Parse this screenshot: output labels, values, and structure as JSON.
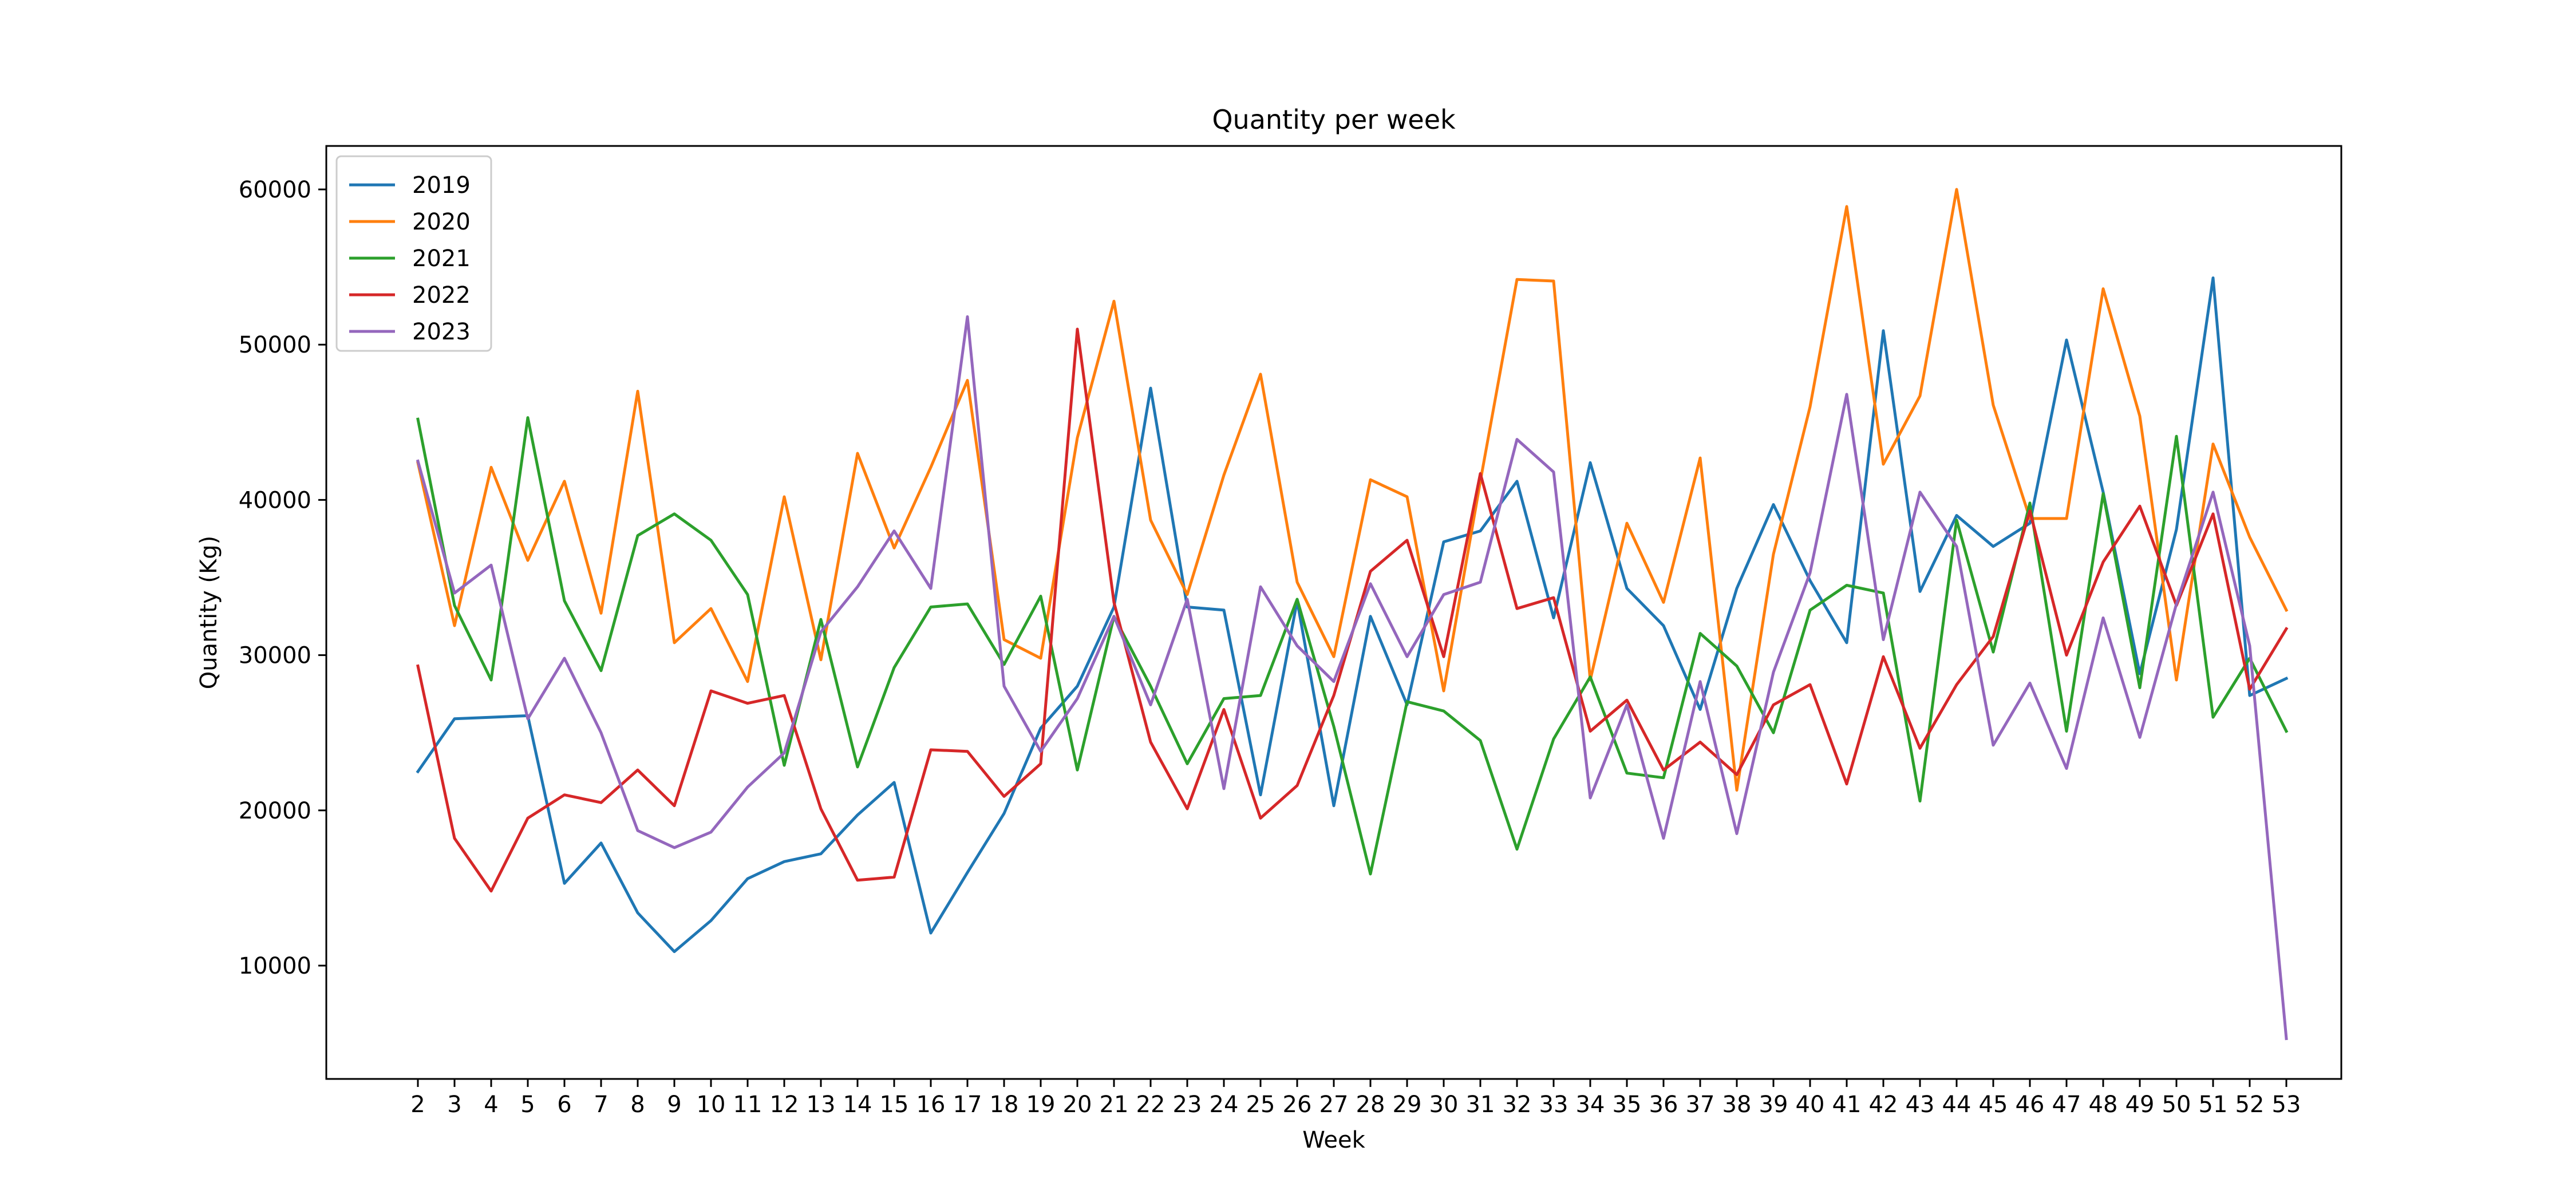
{
  "chart_data": {
    "type": "line",
    "title": "Quantity per week",
    "xlabel": "Week",
    "ylabel": "Quantity (Kg)",
    "x": [
      2,
      3,
      4,
      5,
      6,
      7,
      8,
      9,
      10,
      11,
      12,
      13,
      14,
      15,
      16,
      17,
      18,
      19,
      20,
      21,
      22,
      23,
      24,
      25,
      26,
      27,
      28,
      29,
      30,
      31,
      32,
      33,
      34,
      35,
      36,
      37,
      38,
      39,
      40,
      41,
      42,
      43,
      44,
      45,
      46,
      47,
      48,
      49,
      50,
      51,
      52,
      53
    ],
    "xlim": [
      -0.5,
      54.5
    ],
    "ylim": [
      2700,
      62800
    ],
    "yticks": [
      10000,
      20000,
      30000,
      40000,
      50000,
      60000
    ],
    "legend_position": "top-left",
    "grid": false,
    "series": [
      {
        "name": "2019",
        "color": "#1f77b4",
        "values": [
          22500,
          25900,
          26000,
          26100,
          15300,
          17900,
          13400,
          10900,
          12900,
          15600,
          16700,
          17200,
          19700,
          21800,
          12100,
          16000,
          19800,
          25300,
          28000,
          33100,
          47200,
          33100,
          32900,
          21000,
          33500,
          20300,
          32500,
          26800,
          37300,
          38000,
          41200,
          32400,
          42400,
          34300,
          31900,
          26500,
          34300,
          39700,
          34800,
          30800,
          50900,
          34100,
          39000,
          37000,
          38500,
          50300,
          40500,
          28800,
          38100,
          54300,
          27400,
          28500
        ]
      },
      {
        "name": "2020",
        "color": "#ff7f0e",
        "values": [
          42400,
          31900,
          42100,
          36100,
          41200,
          32700,
          47000,
          30800,
          33000,
          28300,
          40200,
          29700,
          43000,
          36900,
          42100,
          47700,
          31000,
          29800,
          44000,
          52800,
          38700,
          33900,
          41600,
          48100,
          34700,
          29900,
          41300,
          40200,
          27700,
          41200,
          54200,
          54100,
          28400,
          38500,
          33400,
          42700,
          21300,
          36500,
          46000,
          58900,
          42300,
          46700,
          60000,
          46100,
          38800,
          38800,
          53600,
          45400,
          28400,
          43600,
          37600,
          32900
        ]
      },
      {
        "name": "2021",
        "color": "#2ca02c",
        "values": [
          45200,
          33200,
          28400,
          45300,
          33500,
          29000,
          37700,
          39100,
          37400,
          33900,
          22900,
          32300,
          22800,
          29200,
          33100,
          33300,
          29400,
          33800,
          22600,
          32500,
          28000,
          23000,
          27200,
          27400,
          33600,
          25400,
          15900,
          27000,
          26400,
          24500,
          17500,
          24600,
          28600,
          22400,
          22100,
          31400,
          29300,
          25000,
          32900,
          34500,
          34000,
          20600,
          38700,
          30200,
          39800,
          25100,
          40400,
          27900,
          44100,
          26000,
          29800,
          25100
        ]
      },
      {
        "name": "2022",
        "color": "#d62728",
        "values": [
          29300,
          18200,
          14800,
          19500,
          21000,
          20500,
          22600,
          20300,
          27700,
          26900,
          27400,
          20100,
          15500,
          15700,
          23900,
          23800,
          20900,
          23000,
          51000,
          33400,
          24400,
          20100,
          26500,
          19500,
          21600,
          27400,
          35400,
          37400,
          29900,
          41700,
          33000,
          33700,
          25100,
          27100,
          22600,
          24400,
          22300,
          26800,
          28100,
          21700,
          29900,
          24000,
          28100,
          31200,
          39300,
          30000,
          36000,
          39600,
          33200,
          39100,
          27800,
          31700
        ]
      },
      {
        "name": "2023",
        "color": "#9467bd",
        "values": [
          42500,
          34000,
          35800,
          25900,
          29800,
          25000,
          18700,
          17600,
          18600,
          21500,
          23700,
          31500,
          34400,
          38000,
          34300,
          51800,
          28000,
          23800,
          27200,
          32500,
          26800,
          33600,
          21400,
          34400,
          30600,
          28300,
          34600,
          29900,
          33900,
          34700,
          43900,
          41800,
          20800,
          26800,
          18200,
          28300,
          18500,
          28900,
          35300,
          46800,
          31000,
          40500,
          37000,
          24200,
          28200,
          22700,
          32400,
          24700,
          33300,
          40500,
          30600,
          5300
        ]
      }
    ]
  }
}
